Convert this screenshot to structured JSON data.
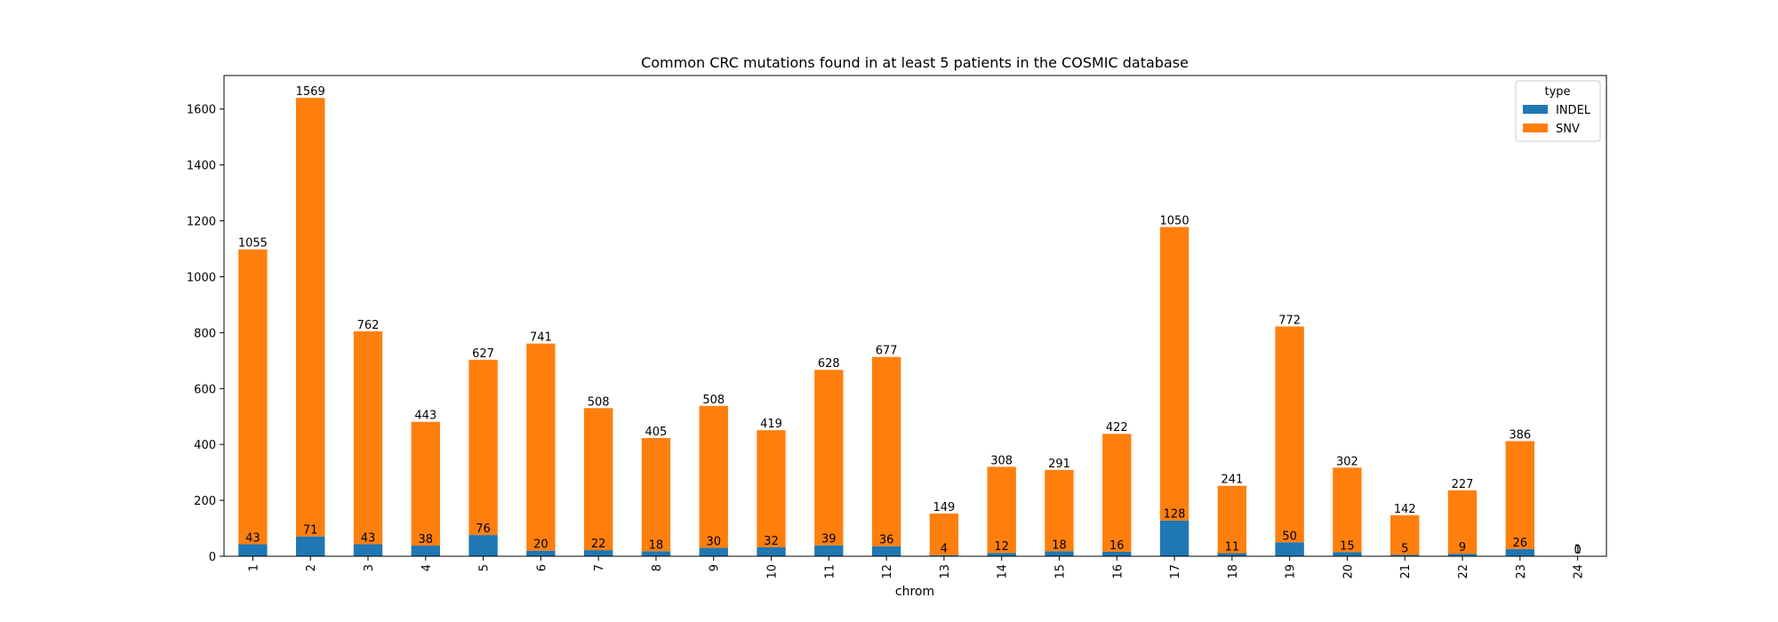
{
  "chart_data": {
    "type": "bar",
    "stacked": true,
    "title": "Common CRC mutations found in at least 5 patients in the COSMIC database",
    "xlabel": "chrom",
    "ylabel": "",
    "ylim": [
      0,
      1720
    ],
    "yticks": [
      0,
      200,
      400,
      600,
      800,
      1000,
      1200,
      1400,
      1600
    ],
    "categories": [
      "1",
      "2",
      "3",
      "4",
      "5",
      "6",
      "7",
      "8",
      "9",
      "10",
      "11",
      "12",
      "13",
      "14",
      "15",
      "16",
      "17",
      "18",
      "19",
      "20",
      "21",
      "22",
      "23",
      "24"
    ],
    "series": [
      {
        "name": "INDEL",
        "color": "#1f77b4",
        "values": [
          43,
          71,
          43,
          38,
          76,
          20,
          22,
          18,
          30,
          32,
          39,
          36,
          4,
          12,
          18,
          16,
          128,
          11,
          50,
          15,
          5,
          9,
          26,
          0
        ]
      },
      {
        "name": "SNV",
        "color": "#ff7f0e",
        "values": [
          1055,
          1569,
          762,
          443,
          627,
          741,
          508,
          405,
          508,
          419,
          628,
          677,
          149,
          308,
          291,
          422,
          1050,
          241,
          772,
          302,
          142,
          227,
          386,
          1
        ]
      }
    ],
    "legend": {
      "title": "type",
      "placement": "top-right"
    },
    "grid": false
  }
}
